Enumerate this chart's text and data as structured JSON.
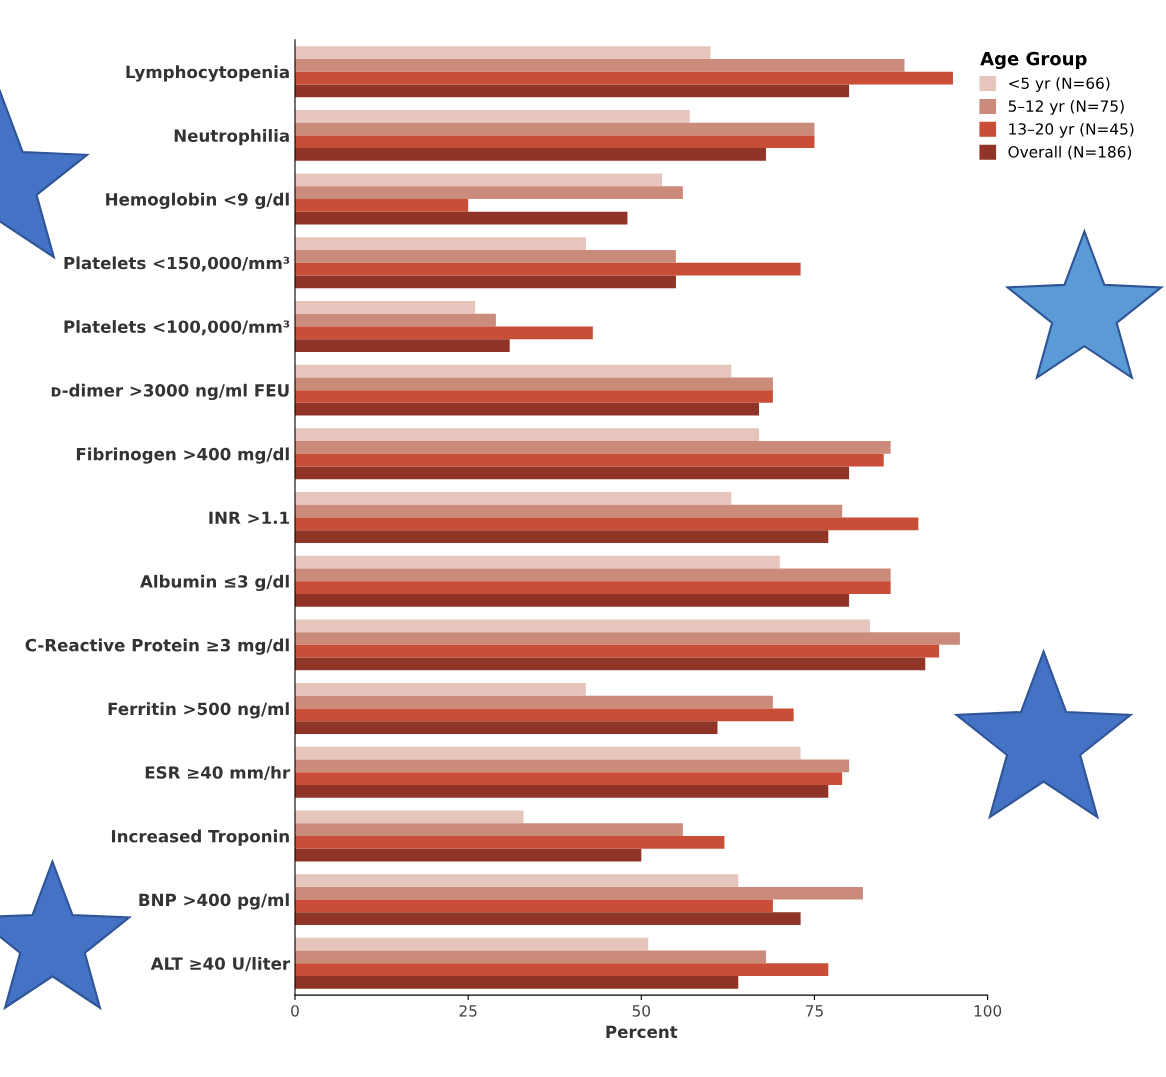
{
  "chart_data": {
    "type": "bar",
    "orientation": "horizontal",
    "xlabel": "Percent",
    "legend_title": "Age Group",
    "legend": "top right",
    "grid": false,
    "categories": [
      "Lymphocytopenia",
      "Neutrophilia",
      "Hemoglobin <9 g/dl",
      "Platelets <150,000/mm³",
      "Platelets <100,000/mm³",
      "ᴅ-dimer >3000 ng/ml FEU",
      "Fibrinogen >400 mg/dl",
      "INR >1.1",
      "Albumin ≤3 g/dl",
      "C-Reactive Protein ≥3 mg/dl",
      "Ferritin >500 ng/ml",
      "ESR ≥40 mm/hr",
      "Increased Troponin",
      "BNP >400 pg/ml",
      "ALT ≥40 U/liter"
    ],
    "xlim": [
      0,
      100
    ],
    "xticks": [
      0,
      25,
      50,
      75,
      100
    ],
    "series": [
      {
        "name": "<5 yr (N=66)",
        "color": "#e6c5bd",
        "values": [
          60,
          57,
          53,
          42,
          26,
          63,
          67,
          63,
          70,
          83,
          42,
          73,
          33,
          64,
          51
        ]
      },
      {
        "name": "5–12 yr (N=75)",
        "color": "#cb8b7b",
        "values": [
          88,
          75,
          56,
          55,
          29,
          69,
          86,
          79,
          86,
          96,
          69,
          80,
          56,
          82,
          68
        ]
      },
      {
        "name": "13–20 yr (N=45)",
        "color": "#c84e38",
        "values": [
          95,
          75,
          25,
          73,
          43,
          69,
          85,
          90,
          86,
          93,
          72,
          79,
          62,
          69,
          77
        ]
      },
      {
        "name": "Overall (N=186)",
        "color": "#8f3426",
        "values": [
          80,
          68,
          48,
          55,
          31,
          67,
          80,
          77,
          80,
          91,
          61,
          77,
          50,
          73,
          64
        ]
      }
    ]
  }
}
